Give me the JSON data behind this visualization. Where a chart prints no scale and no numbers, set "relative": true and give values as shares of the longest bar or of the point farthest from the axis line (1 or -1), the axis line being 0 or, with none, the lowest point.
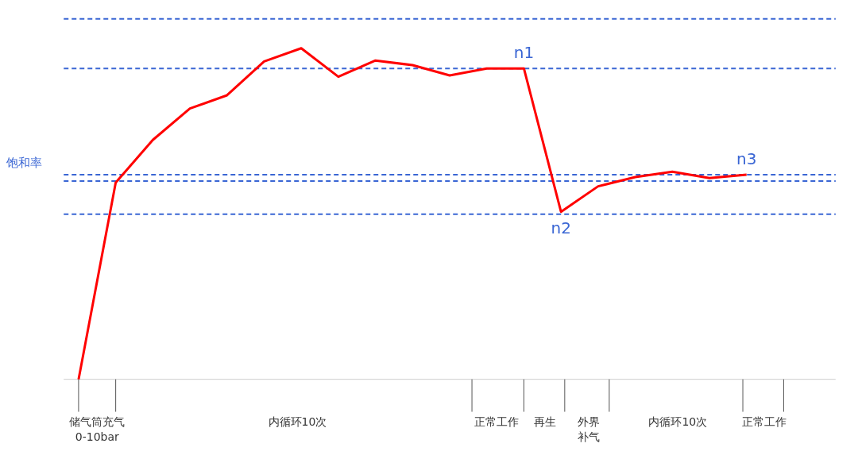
{
  "chart_data": {
    "type": "line",
    "relative": true,
    "ylabel": "饱和率",
    "categories": [
      null,
      null,
      null,
      null,
      null,
      null,
      null,
      null,
      null,
      null,
      null,
      null,
      null,
      null,
      null,
      null,
      null,
      null,
      null
    ],
    "series": [
      {
        "color": "#ff0000",
        "values": [
          0,
          0.594,
          0.723,
          0.818,
          0.858,
          0.96,
          1,
          0.914,
          0.963,
          0.949,
          0.918,
          0.939,
          0.939,
          0.506,
          0.583,
          0.611,
          0.627,
          0.608,
          0.618
        ]
      }
    ],
    "ref_lines": [
      {
        "axis": "y",
        "value": 1.089,
        "color": "#3a66d4",
        "line_style": "dashed"
      },
      {
        "axis": "y",
        "value": 0.939,
        "color": "#3a66d4",
        "line_style": "dashed"
      },
      {
        "axis": "y",
        "value": 0.618,
        "color": "#3a66d4",
        "line_style": "dashed"
      },
      {
        "axis": "y",
        "value": 0.599,
        "color": "#3a66d4",
        "line_style": "dashed"
      },
      {
        "axis": "y",
        "value": 0.499,
        "color": "#3a66d4",
        "line_style": "dashed"
      }
    ],
    "annotations": [
      {
        "text": "n1",
        "y": 0.939
      },
      {
        "text": "n2",
        "y": 0.506
      },
      {
        "text": "n3",
        "y": 0.618
      },
      "储气筒充气 0-10bar",
      "内循环10次",
      "正常工作",
      "再生",
      "外界补气",
      "内循环10次",
      "正常工作"
    ],
    "line_style": "solid"
  }
}
